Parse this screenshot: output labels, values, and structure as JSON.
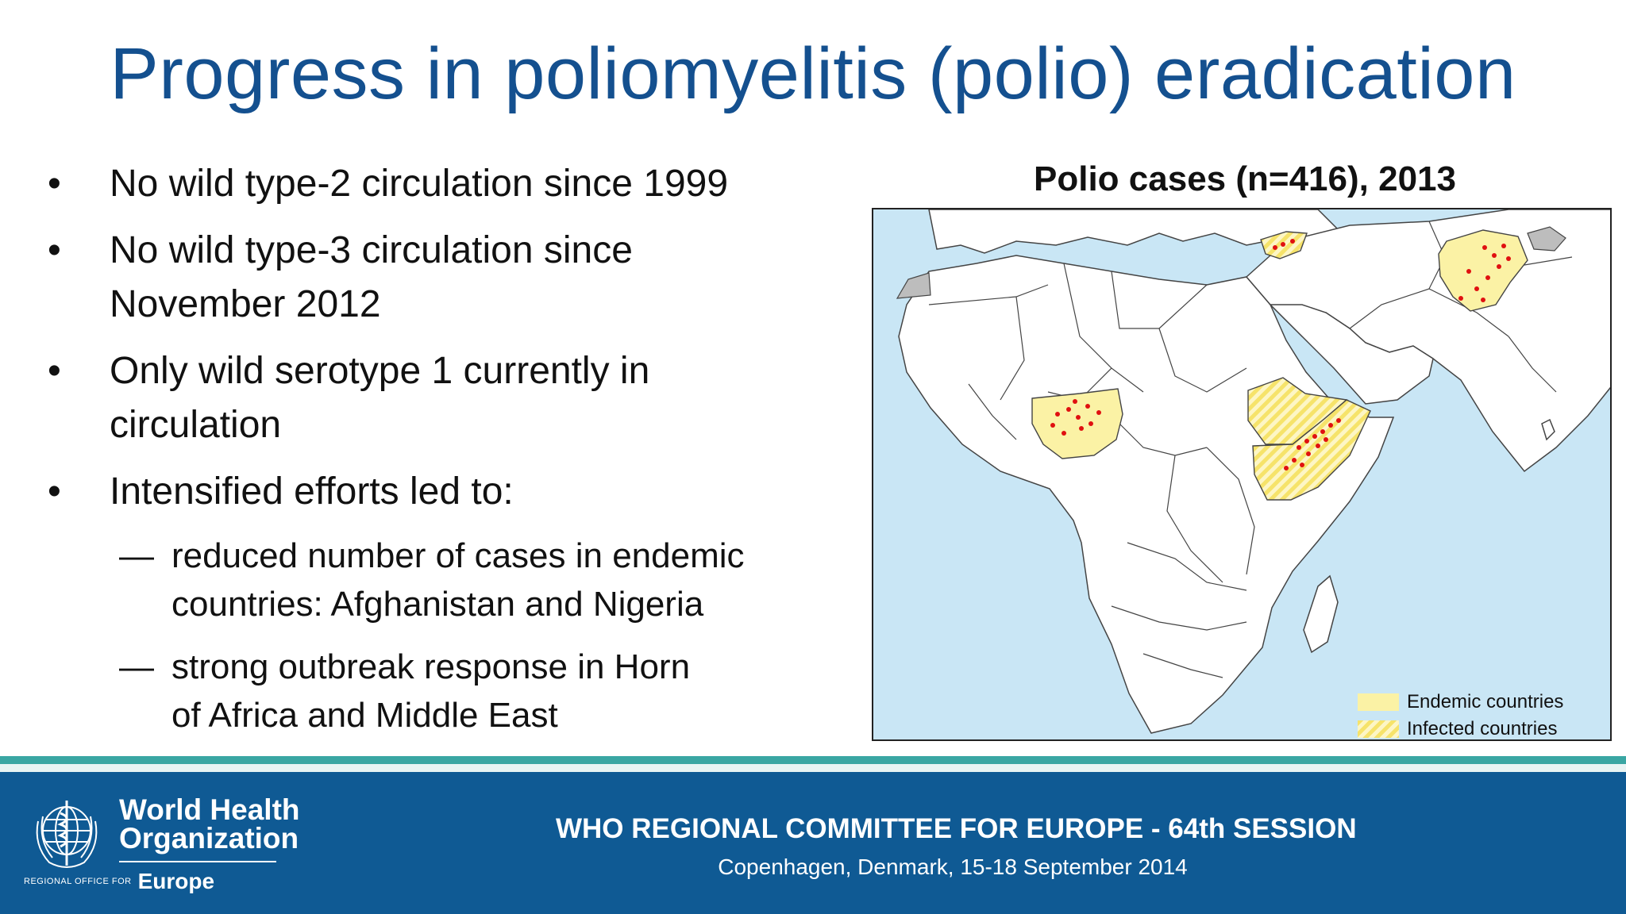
{
  "slide": {
    "title": "Progress in poliomyelitis (polio) eradication"
  },
  "bullets": [
    {
      "marker": "•",
      "text": "No wild type-2 circulation since 1999"
    },
    {
      "marker": "•",
      "text": "No wild type-3 circulation since November 2012"
    },
    {
      "marker": "•",
      "text": "Only wild serotype 1 currently in circulation"
    },
    {
      "marker": "•",
      "text": "Intensified efforts led to:"
    }
  ],
  "sub_bullets": [
    {
      "marker": "—",
      "text": "reduced number of cases in endemic countries: Afghanistan and Nigeria"
    },
    {
      "marker": "—",
      "text": "strong outbreak response in Horn of Africa and Middle East"
    }
  ],
  "map": {
    "title": "Polio cases (n=416), 2013",
    "colors": {
      "ocean": "#c9e6f5",
      "land": "#ffffff",
      "border": "#444444",
      "endemic": "#fbf2a5",
      "infected_hatch": "#f6e36a",
      "no_data": "#bdbdbd",
      "case_dot": "#e01010"
    },
    "legend": {
      "endemic_label": "Endemic countries",
      "infected_label": "Infected countries"
    }
  },
  "footer": {
    "org_line1": "World Health",
    "org_line2": "Organization",
    "region_small": "REGIONAL OFFICE FOR",
    "region_big": "Europe",
    "session": "WHO REGIONAL COMMITTEE FOR EUROPE - 64th SESSION",
    "venue": "Copenhagen, Denmark, 15-18 September 2014",
    "colors": {
      "band": "#0f5a94",
      "stripe": "#3aa6a3"
    }
  }
}
